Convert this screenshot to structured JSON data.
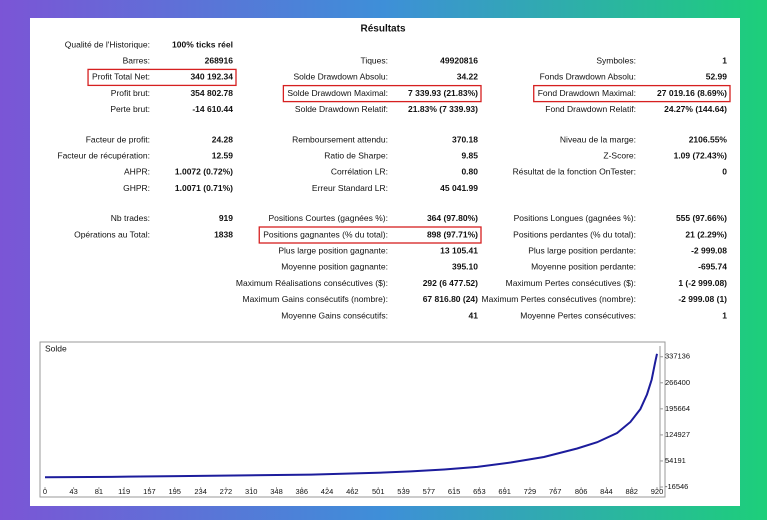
{
  "header": {
    "title": "Résultats"
  },
  "stats": [
    [
      {
        "label": "Qualité de l'Historique:",
        "value": "100% ticks réel"
      },
      null,
      null
    ],
    [
      {
        "label": "Barres:",
        "value": "268916"
      },
      {
        "label": "Tiques:",
        "value": "49920816"
      },
      {
        "label": "Symboles:",
        "value": "1"
      }
    ],
    [
      {
        "label": "Profit Total Net:",
        "value": "340 192.34",
        "highlighted": true
      },
      {
        "label": "Solde Drawdown Absolu:",
        "value": "34.22"
      },
      {
        "label": "Fonds Drawdown Absolu:",
        "value": "52.99"
      }
    ],
    [
      {
        "label": "Profit brut:",
        "value": "354 802.78"
      },
      {
        "label": "Solde Drawdown Maximal:",
        "value": "7 339.93 (21.83%)",
        "highlighted": true
      },
      {
        "label": "Fond Drawdown Maximal:",
        "value": "27 019.16 (8.69%)",
        "highlighted": true
      }
    ],
    [
      {
        "label": "Perte brut:",
        "value": "-14 610.44"
      },
      {
        "label": "Solde Drawdown Relatif:",
        "value": "21.83% (7 339.93)"
      },
      {
        "label": "Fond Drawdown Relatif:",
        "value": "24.27% (144.64)"
      }
    ],
    [
      {
        "label": "Facteur de profit:",
        "value": "24.28"
      },
      {
        "label": "Remboursement attendu:",
        "value": "370.18"
      },
      {
        "label": "Niveau de la marge:",
        "value": "2106.55%"
      }
    ],
    [
      {
        "label": "Facteur de récupération:",
        "value": "12.59"
      },
      {
        "label": "Ratio de Sharpe:",
        "value": "9.85"
      },
      {
        "label": "Z-Score:",
        "value": "1.09 (72.43%)"
      }
    ],
    [
      {
        "label": "AHPR:",
        "value": "1.0072 (0.72%)"
      },
      {
        "label": "Corrélation LR:",
        "value": "0.80"
      },
      {
        "label": "Résultat de la fonction OnTester:",
        "value": "0"
      }
    ],
    [
      {
        "label": "GHPR:",
        "value": "1.0071 (0.71%)"
      },
      {
        "label": "Erreur Standard LR:",
        "value": "45 041.99"
      },
      null
    ],
    [
      {
        "label": "Nb trades:",
        "value": "919"
      },
      {
        "label": "Positions Courtes (gagnées %):",
        "value": "364 (97.80%)"
      },
      {
        "label": "Positions Longues (gagnées %):",
        "value": "555 (97.66%)"
      }
    ],
    [
      {
        "label": "Opérations au Total:",
        "value": "1838"
      },
      {
        "label": "Positions gagnantes (% du total):",
        "value": "898 (97.71%)",
        "highlighted": true
      },
      {
        "label": "Positions perdantes (% du total):",
        "value": "21 (2.29%)"
      }
    ],
    [
      null,
      {
        "label": "Plus large position gagnante:",
        "value": "13 105.41"
      },
      {
        "label": "Plus large position perdante:",
        "value": "-2 999.08"
      }
    ],
    [
      null,
      {
        "label": "Moyenne position gagnante:",
        "value": "395.10"
      },
      {
        "label": "Moyenne position perdante:",
        "value": "-695.74"
      }
    ],
    [
      null,
      {
        "label": "Maximum Réalisations consécutives ($):",
        "value": "292 (6 477.52)"
      },
      {
        "label": "Maximum Pertes consécutives ($):",
        "value": "1 (-2 999.08)"
      }
    ],
    [
      null,
      {
        "label": "Maximum Gains consécutifs (nombre):",
        "value": "67 816.80 (24)"
      },
      {
        "label": "Maximum Pertes consécutives (nombre):",
        "value": "-2 999.08 (1)"
      }
    ],
    [
      null,
      {
        "label": "Moyenne Gains consécutifs:",
        "value": "41"
      },
      {
        "label": "Moyenne Pertes consécutives:",
        "value": "1"
      }
    ]
  ],
  "chart_data": {
    "type": "line",
    "title": "Solde",
    "color": "#1c1c9c",
    "x": [
      0,
      100,
      200,
      300,
      400,
      500,
      550,
      600,
      650,
      700,
      750,
      800,
      830,
      860,
      880,
      895,
      905,
      912,
      917,
      920
    ],
    "values": [
      10000,
      11000,
      13000,
      15000,
      17000,
      22000,
      26000,
      31000,
      38000,
      50000,
      65000,
      88000,
      105000,
      130000,
      160000,
      195000,
      235000,
      275000,
      320000,
      345000
    ],
    "xlim": [
      0,
      920
    ],
    "xticks": [
      0,
      43,
      81,
      119,
      157,
      195,
      234,
      272,
      310,
      348,
      386,
      424,
      462,
      501,
      539,
      577,
      615,
      653,
      691,
      729,
      767,
      806,
      844,
      882,
      920
    ],
    "ylim": [
      -16546,
      350000
    ],
    "yticks": [
      -16546,
      54191,
      124927,
      195664,
      266400,
      337136
    ]
  }
}
